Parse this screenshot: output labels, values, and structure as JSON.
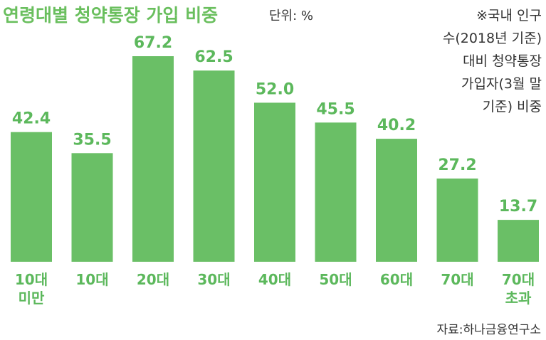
{
  "header": {
    "title": "연령대별 청약통장 가입 비중",
    "unit": "단위: %"
  },
  "note": [
    "※국내 인구",
    "수(2018년 기준)",
    "대비 청약통장",
    "가입자(3월 말",
    "기준) 비중"
  ],
  "source": "자료:하나금융연구소",
  "colors": {
    "bar": "#6abf66",
    "label": "#5cb85c",
    "title": "#6abf5e"
  },
  "chart_data": {
    "type": "bar",
    "title": "연령대별 청약통장 가입 비중",
    "unit": "%",
    "categories": [
      [
        "10대",
        "미만"
      ],
      [
        "10대"
      ],
      [
        "20대"
      ],
      [
        "30대"
      ],
      [
        "40대"
      ],
      [
        "50대"
      ],
      [
        "60대"
      ],
      [
        "70대"
      ],
      [
        "70대",
        "초과"
      ]
    ],
    "values": [
      42.4,
      35.5,
      67.2,
      62.5,
      52.0,
      45.5,
      40.2,
      27.2,
      13.7
    ],
    "value_labels": [
      "42.4",
      "35.5",
      "67.2",
      "62.5",
      "52.0",
      "45.5",
      "40.2",
      "27.2",
      "13.7"
    ],
    "ylim": [
      0,
      67.2
    ],
    "grid": false,
    "legend": "none"
  }
}
